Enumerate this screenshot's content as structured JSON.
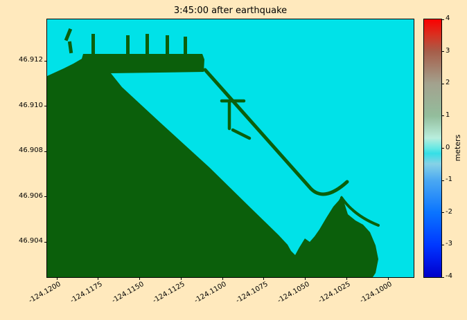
{
  "figure": {
    "title": "3:45:00 after earthquake"
  },
  "axes": {
    "x_tick_labels": [
      "-124.1200",
      "-124.1175",
      "-124.1150",
      "-124.1125",
      "-124.1100",
      "-124.1075",
      "-124.1050",
      "-124.1025",
      "-124.1000"
    ],
    "y_tick_labels": [
      "46.912",
      "46.910",
      "46.908",
      "46.906",
      "46.904"
    ]
  },
  "colorbar": {
    "label": "meters",
    "tick_labels": [
      "4",
      "3",
      "2",
      "1",
      "0",
      "-1",
      "-2",
      "-3",
      "-4"
    ],
    "min": -4,
    "max": 4,
    "gradient_stops": [
      [
        "0%",
        "#0000c8"
      ],
      [
        "6%",
        "#0018e8"
      ],
      [
        "12.5%",
        "#0038ff"
      ],
      [
        "25%",
        "#0a74ff"
      ],
      [
        "37.5%",
        "#4aa8f2"
      ],
      [
        "44%",
        "#86d2e6"
      ],
      [
        "48%",
        "#35dfe6"
      ],
      [
        "50%",
        "#66e8e4"
      ],
      [
        "54%",
        "#b9eedd"
      ],
      [
        "62.5%",
        "#93bd9c"
      ],
      [
        "75%",
        "#a3a28e"
      ],
      [
        "87.5%",
        "#a65e4a"
      ],
      [
        "94%",
        "#d93020"
      ],
      [
        "100%",
        "#fb0000"
      ]
    ]
  },
  "colors": {
    "background": "#ffe9bd",
    "water": "#00e2e8",
    "land": "#0b5f0b",
    "axis": "#000000"
  },
  "chart_data": {
    "type": "heatmap",
    "title": "3:45:00 after earthquake",
    "x_ticks": [
      -124.12,
      -124.1175,
      -124.115,
      -124.1125,
      -124.11,
      -124.1075,
      -124.105,
      -124.1025,
      -124.1
    ],
    "y_ticks": [
      46.912,
      46.91,
      46.908,
      46.906,
      46.904
    ],
    "x_range": [
      -124.1206,
      -124.0984
    ],
    "y_range": [
      46.9024,
      46.9138
    ],
    "grid": false,
    "colorbar": {
      "label": "meters",
      "range": [
        -4,
        4
      ],
      "ticks": [
        4,
        3,
        2,
        1,
        0,
        -1,
        -2,
        -3,
        -4
      ]
    },
    "values_summary": "Sea-surface elevation of a harbor 3:45:00 after an earthquake: visible water is approximately 0 m (cyan on the colorbar scale); land areas (large southwest landmass, northern marina strip with finger piers, diagonal breakwater with hooked tip, interior floating docks, and a southeastern peninsula with spit) are masked dark green."
  }
}
